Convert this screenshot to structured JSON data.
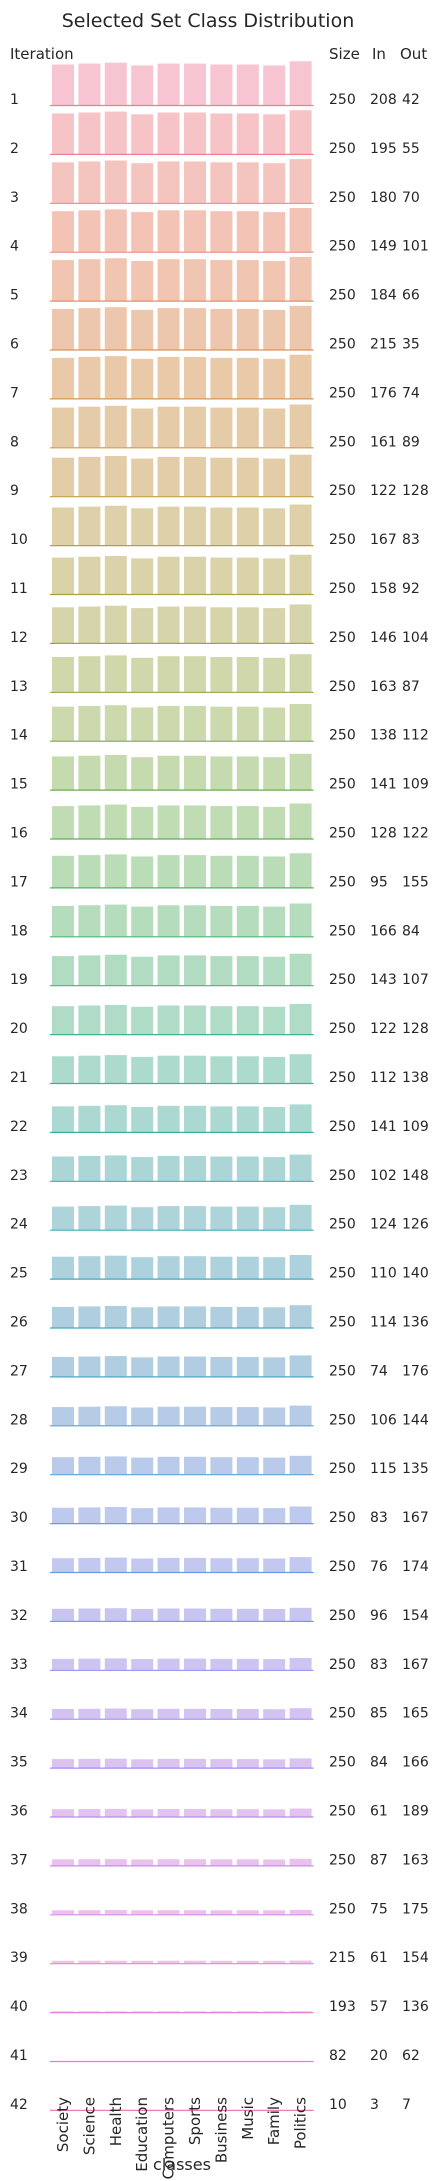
{
  "chart_data": {
    "type": "bar",
    "title": "Selected Set Class Distribution",
    "xlabel": "classes",
    "ylabel": "Iteration",
    "stats_headers": [
      "Size",
      "In",
      "Out"
    ],
    "categories": [
      "Society",
      "Science",
      "Health",
      "Education",
      "Computers",
      "Sports",
      "Business",
      "Music",
      "Family",
      "Politics"
    ],
    "bar_heights_relative": [
      0.88,
      0.9,
      0.92,
      0.86,
      0.9,
      0.9,
      0.88,
      0.88,
      0.86,
      0.95
    ],
    "rows": [
      {
        "label": "1",
        "size": "250",
        "in": "208",
        "out": "42",
        "vis": 1.0
      },
      {
        "label": "2",
        "size": "250",
        "in": "195",
        "out": "55",
        "vis": 1.0
      },
      {
        "label": "3",
        "size": "250",
        "in": "180",
        "out": "70",
        "vis": 1.0
      },
      {
        "label": "4",
        "size": "250",
        "in": "149",
        "out": "101",
        "vis": 1.0
      },
      {
        "label": "5",
        "size": "250",
        "in": "184",
        "out": "66",
        "vis": 1.0
      },
      {
        "label": "6",
        "size": "250",
        "in": "215",
        "out": "35",
        "vis": 1.0
      },
      {
        "label": "7",
        "size": "250",
        "in": "176",
        "out": "74",
        "vis": 1.0
      },
      {
        "label": "8",
        "size": "250",
        "in": "161",
        "out": "89",
        "vis": 0.98
      },
      {
        "label": "9",
        "size": "250",
        "in": "122",
        "out": "128",
        "vis": 0.95
      },
      {
        "label": "10",
        "size": "250",
        "in": "167",
        "out": "83",
        "vis": 0.93
      },
      {
        "label": "11",
        "size": "250",
        "in": "158",
        "out": "92",
        "vis": 0.9
      },
      {
        "label": "12",
        "size": "250",
        "in": "146",
        "out": "104",
        "vis": 0.88
      },
      {
        "label": "13",
        "size": "250",
        "in": "163",
        "out": "87",
        "vis": 0.86
      },
      {
        "label": "14",
        "size": "250",
        "in": "138",
        "out": "112",
        "vis": 0.84
      },
      {
        "label": "15",
        "size": "250",
        "in": "141",
        "out": "109",
        "vis": 0.82
      },
      {
        "label": "16",
        "size": "250",
        "in": "128",
        "out": "122",
        "vis": 0.8
      },
      {
        "label": "17",
        "size": "250",
        "in": "95",
        "out": "155",
        "vis": 0.78
      },
      {
        "label": "18",
        "size": "250",
        "in": "166",
        "out": "84",
        "vis": 0.75
      },
      {
        "label": "19",
        "size": "250",
        "in": "143",
        "out": "107",
        "vis": 0.72
      },
      {
        "label": "20",
        "size": "250",
        "in": "122",
        "out": "128",
        "vis": 0.69
      },
      {
        "label": "21",
        "size": "250",
        "in": "112",
        "out": "138",
        "vis": 0.66
      },
      {
        "label": "22",
        "size": "250",
        "in": "141",
        "out": "109",
        "vis": 0.63
      },
      {
        "label": "23",
        "size": "250",
        "in": "102",
        "out": "148",
        "vis": 0.6
      },
      {
        "label": "24",
        "size": "250",
        "in": "124",
        "out": "126",
        "vis": 0.57
      },
      {
        "label": "25",
        "size": "250",
        "in": "110",
        "out": "140",
        "vis": 0.54
      },
      {
        "label": "26",
        "size": "250",
        "in": "114",
        "out": "136",
        "vis": 0.51
      },
      {
        "label": "27",
        "size": "250",
        "in": "74",
        "out": "176",
        "vis": 0.48
      },
      {
        "label": "28",
        "size": "250",
        "in": "106",
        "out": "144",
        "vis": 0.45
      },
      {
        "label": "29",
        "size": "250",
        "in": "115",
        "out": "135",
        "vis": 0.42
      },
      {
        "label": "30",
        "size": "250",
        "in": "83",
        "out": "167",
        "vis": 0.38
      },
      {
        "label": "31",
        "size": "250",
        "in": "76",
        "out": "174",
        "vis": 0.34
      },
      {
        "label": "32",
        "size": "250",
        "in": "96",
        "out": "154",
        "vis": 0.3
      },
      {
        "label": "33",
        "size": "250",
        "in": "83",
        "out": "167",
        "vis": 0.27
      },
      {
        "label": "34",
        "size": "250",
        "in": "85",
        "out": "165",
        "vis": 0.24
      },
      {
        "label": "35",
        "size": "250",
        "in": "84",
        "out": "166",
        "vis": 0.21
      },
      {
        "label": "36",
        "size": "250",
        "in": "61",
        "out": "189",
        "vis": 0.18
      },
      {
        "label": "37",
        "size": "250",
        "in": "87",
        "out": "163",
        "vis": 0.15
      },
      {
        "label": "38",
        "size": "250",
        "in": "75",
        "out": "175",
        "vis": 0.1
      },
      {
        "label": "39",
        "size": "215",
        "in": "61",
        "out": "154",
        "vis": 0.06
      },
      {
        "label": "40",
        "size": "193",
        "in": "57",
        "out": "136",
        "vis": 0.02
      },
      {
        "label": "41",
        "size": "82",
        "in": "20",
        "out": "62",
        "vis": 0.0
      },
      {
        "label": "42",
        "size": "10",
        "in": "3",
        "out": "7",
        "vis": 0.0
      }
    ],
    "palette": [
      "#f7c5d1",
      "#f3c3b5",
      "#ebc9a9",
      "#dfcfa8",
      "#d2d6aa",
      "#c1dcb1",
      "#b2dcbf",
      "#abd9cf",
      "#acd3db",
      "#b2cce3",
      "#bfc9ef",
      "#cfc4f2",
      "#e3c2ee",
      "#f4bfea",
      "#f5c1e0"
    ],
    "baseline_palette": [
      "#f07b94",
      "#e48f6c",
      "#c99a40",
      "#9da53b",
      "#5eae53",
      "#3db48a",
      "#36aeb0",
      "#4aa6c4",
      "#6b9be4",
      "#9d8ef3",
      "#dc86e9",
      "#f07bb9"
    ]
  }
}
